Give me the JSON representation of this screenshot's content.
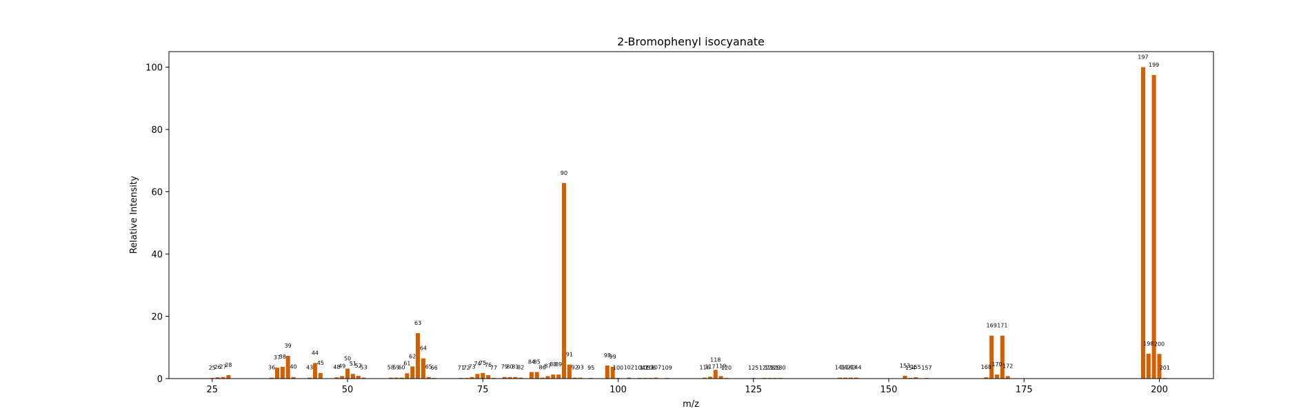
{
  "chart_data": {
    "type": "bar",
    "title": "2-Bromophenyl isocyanate",
    "xlabel": "m/z",
    "ylabel": "Relative Intensity",
    "xlim": [
      17,
      210
    ],
    "ylim": [
      0,
      105
    ],
    "xticks": [
      25,
      50,
      75,
      100,
      125,
      150,
      175,
      200
    ],
    "yticks": [
      0,
      20,
      40,
      60,
      80,
      100
    ],
    "bar_color": "#d55e00",
    "grid": false,
    "points": [
      {
        "x": 25,
        "y": 0.2
      },
      {
        "x": 26,
        "y": 0.4
      },
      {
        "x": 27,
        "y": 0.5
      },
      {
        "x": 28,
        "y": 1.1
      },
      {
        "x": 36,
        "y": 0.3
      },
      {
        "x": 37,
        "y": 3.5
      },
      {
        "x": 38,
        "y": 3.8
      },
      {
        "x": 39,
        "y": 7.3
      },
      {
        "x": 40,
        "y": 0.5
      },
      {
        "x": 43,
        "y": 0.3
      },
      {
        "x": 44,
        "y": 5.0
      },
      {
        "x": 45,
        "y": 1.8
      },
      {
        "x": 48,
        "y": 0.4
      },
      {
        "x": 49,
        "y": 0.8
      },
      {
        "x": 50,
        "y": 3.2
      },
      {
        "x": 51,
        "y": 1.5
      },
      {
        "x": 52,
        "y": 0.9
      },
      {
        "x": 53,
        "y": 0.3
      },
      {
        "x": 58,
        "y": 0.3
      },
      {
        "x": 59,
        "y": 0.3
      },
      {
        "x": 60,
        "y": 0.3
      },
      {
        "x": 61,
        "y": 1.7
      },
      {
        "x": 62,
        "y": 3.9
      },
      {
        "x": 63,
        "y": 14.6
      },
      {
        "x": 64,
        "y": 6.5
      },
      {
        "x": 65,
        "y": 0.5
      },
      {
        "x": 66,
        "y": 0.2
      },
      {
        "x": 71,
        "y": 0.2
      },
      {
        "x": 72,
        "y": 0.2
      },
      {
        "x": 73,
        "y": 0.5
      },
      {
        "x": 74,
        "y": 1.5
      },
      {
        "x": 75,
        "y": 1.8
      },
      {
        "x": 76,
        "y": 1.1
      },
      {
        "x": 77,
        "y": 0.2
      },
      {
        "x": 79,
        "y": 0.5
      },
      {
        "x": 80,
        "y": 0.5
      },
      {
        "x": 81,
        "y": 0.5
      },
      {
        "x": 82,
        "y": 0.3
      },
      {
        "x": 84,
        "y": 2.1
      },
      {
        "x": 85,
        "y": 2.1
      },
      {
        "x": 86,
        "y": 0.3
      },
      {
        "x": 87,
        "y": 0.8
      },
      {
        "x": 88,
        "y": 1.3
      },
      {
        "x": 89,
        "y": 1.3
      },
      {
        "x": 90,
        "y": 62.8
      },
      {
        "x": 91,
        "y": 4.5
      },
      {
        "x": 92,
        "y": 0.3
      },
      {
        "x": 93,
        "y": 0.3
      },
      {
        "x": 95,
        "y": 0.2
      },
      {
        "x": 98,
        "y": 4.2
      },
      {
        "x": 99,
        "y": 3.8
      },
      {
        "x": 100,
        "y": 0.2
      },
      {
        "x": 102,
        "y": 0.3
      },
      {
        "x": 104,
        "y": 0.2
      },
      {
        "x": 105,
        "y": 0.2
      },
      {
        "x": 106,
        "y": 0.2
      },
      {
        "x": 107,
        "y": 0.3
      },
      {
        "x": 109,
        "y": 0.2
      },
      {
        "x": 116,
        "y": 0.3
      },
      {
        "x": 117,
        "y": 0.6
      },
      {
        "x": 118,
        "y": 2.8
      },
      {
        "x": 119,
        "y": 0.8
      },
      {
        "x": 120,
        "y": 0.2
      },
      {
        "x": 125,
        "y": 0.2
      },
      {
        "x": 127,
        "y": 0.2
      },
      {
        "x": 128,
        "y": 0.2
      },
      {
        "x": 129,
        "y": 0.2
      },
      {
        "x": 130,
        "y": 0.2
      },
      {
        "x": 141,
        "y": 0.3
      },
      {
        "x": 142,
        "y": 0.3
      },
      {
        "x": 143,
        "y": 0.3
      },
      {
        "x": 144,
        "y": 0.3
      },
      {
        "x": 153,
        "y": 0.9
      },
      {
        "x": 154,
        "y": 0.2
      },
      {
        "x": 155,
        "y": 0.4
      },
      {
        "x": 157,
        "y": 0.2
      },
      {
        "x": 168,
        "y": 0.4
      },
      {
        "x": 169,
        "y": 13.8
      },
      {
        "x": 170,
        "y": 1.3
      },
      {
        "x": 171,
        "y": 13.8
      },
      {
        "x": 172,
        "y": 0.8
      },
      {
        "x": 197,
        "y": 100.0
      },
      {
        "x": 198,
        "y": 8.0
      },
      {
        "x": 199,
        "y": 97.5
      },
      {
        "x": 200,
        "y": 7.9
      },
      {
        "x": 201,
        "y": 0.2
      }
    ]
  }
}
